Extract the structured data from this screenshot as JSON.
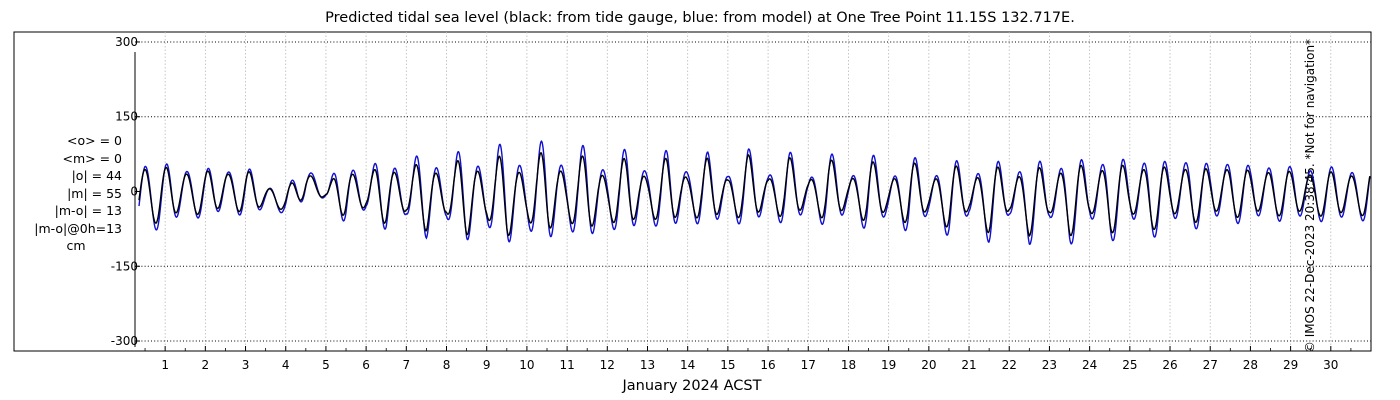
{
  "chart_data": {
    "type": "line",
    "title": "Predicted tidal sea level (black: from tide gauge, blue: from model) at One Tree Point 11.15S 132.717E.",
    "xlabel": "January 2024 ACST",
    "ylabel": "",
    "x_tick_labels": [
      "1",
      "2",
      "3",
      "4",
      "5",
      "6",
      "7",
      "8",
      "9",
      "10",
      "11",
      "12",
      "13",
      "14",
      "15",
      "16",
      "17",
      "18",
      "19",
      "20",
      "21",
      "22",
      "23",
      "24",
      "25",
      "26",
      "27",
      "28",
      "29",
      "30"
    ],
    "xlim": [
      0.25,
      31.0
    ],
    "ylim": [
      -320,
      320
    ],
    "y_ticks": [
      300,
      150,
      0,
      -150,
      -300
    ],
    "y_tick_labels": [
      "300",
      "150",
      "0",
      "-150",
      "-300"
    ],
    "grid": true,
    "series": [
      {
        "name": "tide gauge",
        "color": "#000000",
        "x": [
          0.5,
          1.0,
          1.5,
          2.0,
          2.5,
          3.0,
          3.5,
          4.0,
          4.5,
          5.0,
          5.5,
          6.0,
          6.5,
          7.0,
          7.5,
          8.0,
          8.5,
          9.0,
          9.5,
          10.0,
          10.5,
          11.0,
          11.5,
          12.0,
          12.5,
          13.0,
          13.5,
          14.0,
          14.5,
          15.0,
          15.5,
          16.0,
          16.5,
          17.0,
          17.5,
          18.0,
          18.5,
          19.0,
          19.5,
          20.0,
          20.5,
          21.0,
          21.5,
          22.0,
          22.5,
          23.0,
          23.5,
          24.0,
          24.5,
          25.0,
          25.5,
          26.0,
          26.5,
          27.0,
          27.5,
          28.0,
          28.5,
          29.0,
          29.5,
          30.0,
          30.5,
          31.0
        ],
        "daily_high": [
          65,
          48,
          50,
          40,
          48,
          45,
          15,
          3,
          52,
          4,
          65,
          22,
          75,
          30,
          80,
          30,
          88,
          40,
          90,
          40,
          95,
          45,
          80,
          40,
          72,
          40,
          70,
          40,
          68,
          35,
          75,
          35,
          72,
          30,
          70,
          30,
          70,
          26,
          72,
          24,
          68,
          24,
          70,
          24,
          70,
          28,
          78,
          35,
          78,
          40,
          75,
          40,
          70,
          40,
          65,
          40,
          55,
          40,
          48,
          40,
          45,
          50
        ],
        "daily_low": [
          -75,
          -62,
          -48,
          -50,
          -40,
          -45,
          -35,
          -38,
          -20,
          -10,
          -70,
          -30,
          -85,
          -40,
          -100,
          -45,
          -110,
          -55,
          -115,
          -60,
          -100,
          -60,
          -95,
          -60,
          -80,
          -50,
          -75,
          -50,
          -65,
          -50,
          -62,
          -45,
          -60,
          -40,
          -65,
          -40,
          -70,
          -45,
          -72,
          -45,
          -80,
          -45,
          -90,
          -45,
          -95,
          -50,
          -98,
          -50,
          -95,
          -50,
          -90,
          -50,
          -75,
          -45,
          -62,
          -45,
          -58,
          -45,
          -56,
          -50,
          -55,
          -50
        ]
      },
      {
        "name": "model",
        "color": "#1010d0",
        "x": [
          0.5,
          1.0,
          1.5,
          2.0,
          2.5,
          3.0,
          3.5,
          4.0,
          4.5,
          5.0,
          5.5,
          6.0,
          6.5,
          7.0,
          7.5,
          8.0,
          8.5,
          9.0,
          9.5,
          10.0,
          10.5,
          11.0,
          11.5,
          12.0,
          12.5,
          13.0,
          13.5,
          14.0,
          14.5,
          15.0,
          15.5,
          16.0,
          16.5,
          17.0,
          17.5,
          18.0,
          18.5,
          19.0,
          19.5,
          20.0,
          20.5,
          21.0,
          21.5,
          22.0,
          22.5,
          23.0,
          23.5,
          24.0,
          24.5,
          25.0,
          25.5,
          26.0,
          26.5,
          27.0,
          27.5,
          28.0,
          28.5,
          29.0,
          29.5,
          30.0,
          30.5,
          31.0
        ],
        "daily_high": [
          75,
          55,
          58,
          45,
          55,
          52,
          18,
          5,
          62,
          10,
          80,
          30,
          90,
          40,
          102,
          40,
          110,
          50,
          120,
          55,
          120,
          60,
          102,
          55,
          90,
          55,
          85,
          55,
          80,
          45,
          88,
          45,
          85,
          35,
          85,
          35,
          88,
          30,
          88,
          28,
          85,
          28,
          90,
          28,
          92,
          35,
          95,
          45,
          98,
          50,
          95,
          50,
          90,
          50,
          80,
          50,
          68,
          50,
          60,
          50,
          55,
          60
        ],
        "daily_low": [
          -88,
          -78,
          -55,
          -58,
          -48,
          -52,
          -42,
          -45,
          -25,
          -12,
          -85,
          -35,
          -100,
          -48,
          -118,
          -55,
          -125,
          -68,
          -135,
          -75,
          -125,
          -75,
          -118,
          -72,
          -100,
          -60,
          -95,
          -60,
          -80,
          -60,
          -78,
          -55,
          -75,
          -50,
          -80,
          -50,
          -88,
          -55,
          -90,
          -55,
          -98,
          -55,
          -110,
          -55,
          -115,
          -60,
          -118,
          -62,
          -115,
          -60,
          -110,
          -60,
          -92,
          -55,
          -78,
          -55,
          -72,
          -55,
          -70,
          -60,
          -68,
          -60
        ]
      }
    ],
    "annotations": {
      "stats_lines": [
        "<o> = 0",
        "<m> = 0",
        "|o| = 44",
        "|m| = 55",
        "|m-o| = 13",
        "|m-o|@0h=13",
        "cm"
      ],
      "side_stamp": "© IMOS 22-Dec-2023 20:38:45. *Not for navigation*"
    }
  }
}
